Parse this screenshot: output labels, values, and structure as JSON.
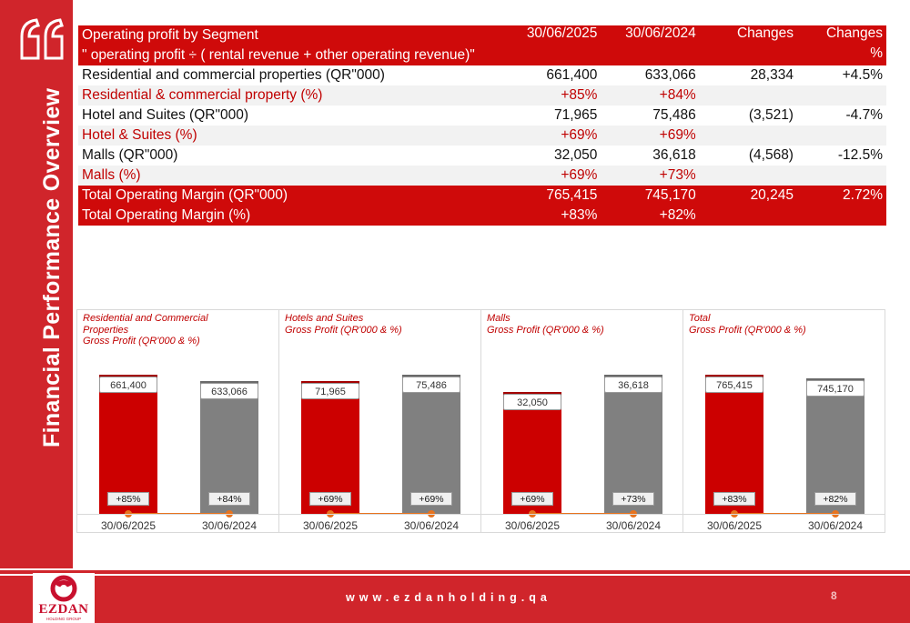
{
  "side_title": "Financial Performance Overview",
  "table": {
    "header": {
      "label": "Operating profit by Segment",
      "sub": "\" operating profit ÷ ( rental revenue + other operating revenue)\"",
      "col1": "30/06/2025",
      "col2": "30/06/2024",
      "col3": "Changes",
      "col4a": "Changes",
      "col4b": "%"
    },
    "rows": [
      {
        "label": "Residential and commercial properties (QR\"000)",
        "v1": "661,400",
        "v2": "633,066",
        "v3": "28,334",
        "v4": "+4.5%"
      },
      {
        "label": "Residential & commercial property     (%)",
        "v1": "+85%",
        "v2": "+84%",
        "v3": "",
        "v4": ""
      },
      {
        "label": "Hotel and Suites   (QR\"000)",
        "v1": "71,965",
        "v2": "75,486",
        "v3": "(3,521)",
        "v4": "-4.7%"
      },
      {
        "label": "Hotel & Suites   (%)",
        "v1": "+69%",
        "v2": "+69%",
        "v3": "",
        "v4": ""
      },
      {
        "label": "Malls (QR\"000)",
        "v1": "32,050",
        "v2": "36,618",
        "v3": "(4,568)",
        "v4": "-12.5%"
      },
      {
        "label": "Malls (%)",
        "v1": "+69%",
        "v2": "+73%",
        "v3": "",
        "v4": ""
      },
      {
        "label": "Total Operating Margin (QR\"000)",
        "v1": "765,415",
        "v2": "745,170",
        "v3": "20,245",
        "v4": "2.72%"
      },
      {
        "label": "Total Operating Margin (%)",
        "v1": "+83%",
        "v2": "+82%",
        "v3": "",
        "v4": ""
      }
    ]
  },
  "chart_data": [
    {
      "type": "bar",
      "title": "Residential and Commercial Properties\nGross Profit (QR'000 & %)",
      "categories": [
        "30/06/2025",
        "30/06/2024"
      ],
      "values": [
        661400,
        633066
      ],
      "value_labels": [
        "661,400",
        "633,066"
      ],
      "percent_labels": [
        "+85%",
        "+84%"
      ],
      "percents": [
        85,
        84
      ],
      "colors": [
        "#cc0000",
        "#808080"
      ]
    },
    {
      "type": "bar",
      "title": "Hotels and Suites\nGross Profit (QR'000 & %)",
      "categories": [
        "30/06/2025",
        "30/06/2024"
      ],
      "values": [
        71965,
        75486
      ],
      "value_labels": [
        "71,965",
        "75,486"
      ],
      "percent_labels": [
        "+69%",
        "+69%"
      ],
      "percents": [
        69,
        69
      ],
      "colors": [
        "#cc0000",
        "#808080"
      ]
    },
    {
      "type": "bar",
      "title": "Malls\nGross Profit (QR'000 & %)",
      "categories": [
        "30/06/2025",
        "30/06/2024"
      ],
      "values": [
        32050,
        36618
      ],
      "value_labels": [
        "32,050",
        "36,618"
      ],
      "percent_labels": [
        "+69%",
        "+73%"
      ],
      "percents": [
        69,
        73
      ],
      "colors": [
        "#cc0000",
        "#808080"
      ]
    },
    {
      "type": "bar",
      "title": "Total\nGross Profit (QR'000 & %)",
      "categories": [
        "30/06/2025",
        "30/06/2024"
      ],
      "values": [
        765415,
        745170
      ],
      "value_labels": [
        "765,415",
        "745,170"
      ],
      "percent_labels": [
        "+83%",
        "+82%"
      ],
      "percents": [
        83,
        82
      ],
      "colors": [
        "#cc0000",
        "#808080"
      ]
    }
  ],
  "footer": {
    "website": "www.ezdanholding.qa",
    "page": "8",
    "logo_text": "EZDAN",
    "logo_sub": "HOLDING GROUP",
    "brand_color": "#d0252b"
  },
  "icons": {
    "quote": "quote-mark-icon",
    "logo": "ezdan-logo-icon"
  }
}
